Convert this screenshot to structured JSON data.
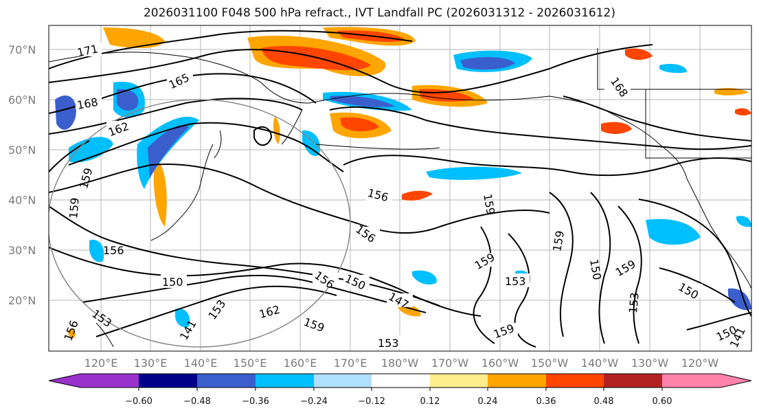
{
  "title": "2026031100 F048 500 hPa refract., IVT Landfall PC (2026031312 - 2026031612)",
  "lat_labels": [
    "70°N",
    "60°N",
    "50°N",
    "40°N",
    "30°N",
    "20°N"
  ],
  "lon_labels": [
    "120°E",
    "130°E",
    "140°E",
    "150°E",
    "160°E",
    "170°E",
    "180°W",
    "170°W",
    "160°W",
    "150°W",
    "140°W",
    "130°W",
    "120°W"
  ],
  "contour_labels": [
    "171",
    "165",
    "168",
    "162",
    "159",
    "159",
    "156",
    "156",
    "150",
    "156",
    "159",
    "159",
    "150",
    "156",
    "147",
    "153",
    "162",
    "159",
    "141",
    "153",
    "156",
    "153",
    "159",
    "159",
    "150",
    "153",
    "159",
    "153",
    "150",
    "150",
    "141",
    "168"
  ],
  "colorbar": {
    "tick_labels": [
      "−0.60",
      "−0.48",
      "−0.36",
      "−0.24",
      "−0.12",
      "0.12",
      "0.24",
      "0.36",
      "0.48",
      "0.60"
    ],
    "colors": [
      "#9932cc",
      "#00008b",
      "#3a5fcd",
      "#00bfff",
      "#b0e0ff",
      "#ffffff",
      "#ffec8b",
      "#ffa500",
      "#ff4500",
      "#b22222",
      "#ff82ab"
    ]
  }
}
